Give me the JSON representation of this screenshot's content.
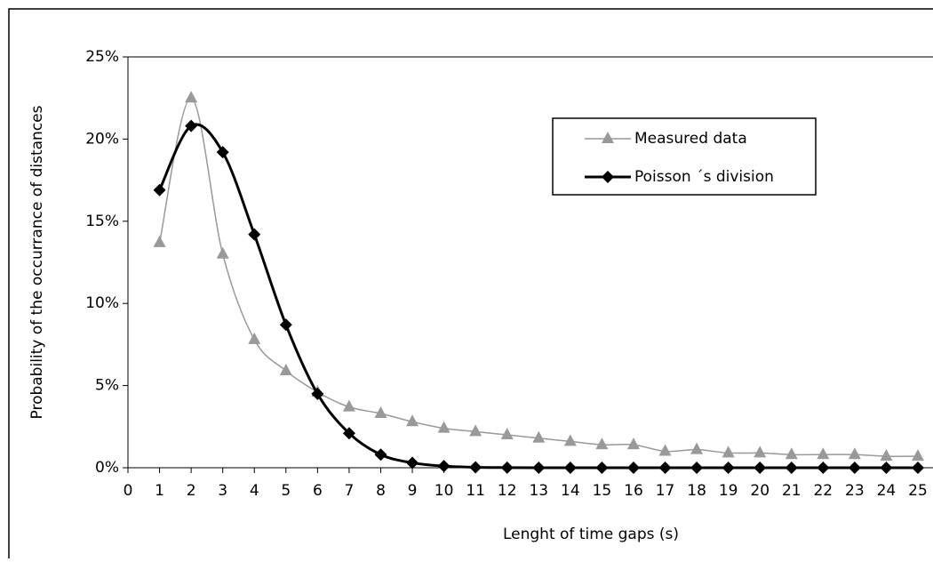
{
  "chart_data": {
    "type": "line",
    "x_label": "Lenght of time gaps (s)",
    "y_label": "Probability of the occurrance of distances",
    "x": [
      1,
      2,
      3,
      4,
      5,
      6,
      7,
      8,
      9,
      10,
      11,
      12,
      13,
      14,
      15,
      16,
      17,
      18,
      19,
      20,
      21,
      22,
      23,
      24,
      25
    ],
    "series": [
      {
        "name": "Measured data",
        "color": "#999999",
        "marker": "triangle",
        "values": [
          13.7,
          22.5,
          13.0,
          7.8,
          5.9,
          4.6,
          3.7,
          3.3,
          2.8,
          2.4,
          2.2,
          2.0,
          1.8,
          1.6,
          1.4,
          1.4,
          1.0,
          1.1,
          0.9,
          0.9,
          0.8,
          0.8,
          0.8,
          0.7,
          0.7
        ]
      },
      {
        "name": "Poisson ´s division",
        "color": "#000000",
        "marker": "diamond",
        "values": [
          16.9,
          20.8,
          19.2,
          14.2,
          8.7,
          4.5,
          2.1,
          0.8,
          0.3,
          0.1,
          0.03,
          0.01,
          0,
          0,
          0,
          0,
          0,
          0,
          0,
          0,
          0,
          0,
          0,
          0,
          0
        ]
      }
    ],
    "xlim": [
      0,
      25
    ],
    "xticks": [
      0,
      1,
      2,
      3,
      4,
      5,
      6,
      7,
      8,
      9,
      10,
      11,
      12,
      13,
      14,
      15,
      16,
      17,
      18,
      19,
      20,
      21,
      22,
      23,
      24,
      25
    ],
    "ylim": [
      0,
      25
    ],
    "yticks": [
      {
        "value": 0,
        "label": "0%"
      },
      {
        "value": 5,
        "label": "5%"
      },
      {
        "value": 10,
        "label": "10%"
      },
      {
        "value": 15,
        "label": "15%"
      },
      {
        "value": 20,
        "label": "20%"
      },
      {
        "value": 25,
        "label": "25%"
      }
    ],
    "grid": false,
    "smooth": true
  }
}
